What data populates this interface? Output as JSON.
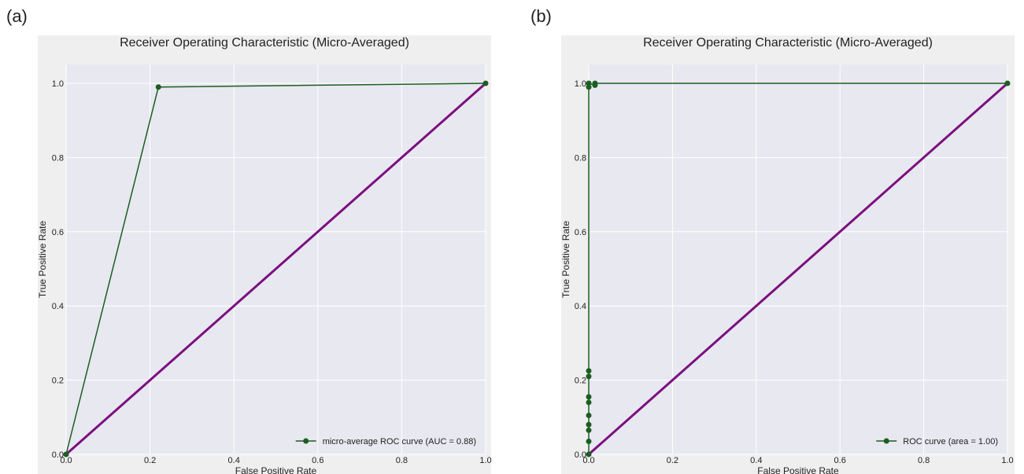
{
  "panels": [
    {
      "label": "(a)"
    },
    {
      "label": "(b)"
    }
  ],
  "chart_data": [
    {
      "type": "line",
      "title": "Receiver Operating Characteristic (Micro-Averaged)",
      "xlabel": "False Positive Rate",
      "ylabel": "True Positive Rate",
      "xlim": [
        0,
        1
      ],
      "ylim": [
        0,
        1
      ],
      "xticks": [
        "0.0",
        "0.2",
        "0.4",
        "0.6",
        "0.8",
        "1.0"
      ],
      "yticks": [
        "0.0",
        "0.2",
        "0.4",
        "0.6",
        "0.8",
        "1.0"
      ],
      "grid": true,
      "legend_position": "lower-right",
      "series": [
        {
          "name": "micro-average ROC curve (AUC = 0.88)",
          "color": "#1b5e20",
          "marker": "circle",
          "x": [
            0.0,
            0.22,
            1.0
          ],
          "y": [
            0.0,
            0.99,
            1.0
          ]
        },
        {
          "color": "#7b0f7f",
          "marker": "none",
          "x": [
            0.0,
            1.0
          ],
          "y": [
            0.0,
            1.0
          ]
        }
      ]
    },
    {
      "type": "line",
      "title": "Receiver Operating Characteristic (Micro-Averaged)",
      "xlabel": "False Positive Rate",
      "ylabel": "True Positive Rate",
      "xlim": [
        0,
        1
      ],
      "ylim": [
        0,
        1
      ],
      "xticks": [
        "0.0",
        "0.2",
        "0.4",
        "0.6",
        "0.8",
        "1.0"
      ],
      "yticks": [
        "0.0",
        "0.2",
        "0.4",
        "0.6",
        "0.8",
        "1.0"
      ],
      "grid": true,
      "legend_position": "lower-right",
      "series": [
        {
          "name": "ROC curve (area = 1.00)",
          "color": "#1b5e20",
          "marker": "circle",
          "x": [
            0.0,
            0.0,
            0.0,
            0.0,
            0.0,
            0.0,
            0.0,
            0.0,
            0.0,
            0.0,
            0.0,
            0.015,
            0.015,
            1.0
          ],
          "y": [
            0.0,
            0.035,
            0.065,
            0.08,
            0.105,
            0.14,
            0.155,
            0.21,
            0.225,
            0.99,
            1.0,
            0.995,
            1.0,
            1.0
          ]
        },
        {
          "color": "#7b0f7f",
          "marker": "none",
          "x": [
            0.0,
            1.0
          ],
          "y": [
            0.0,
            1.0
          ]
        }
      ]
    }
  ]
}
